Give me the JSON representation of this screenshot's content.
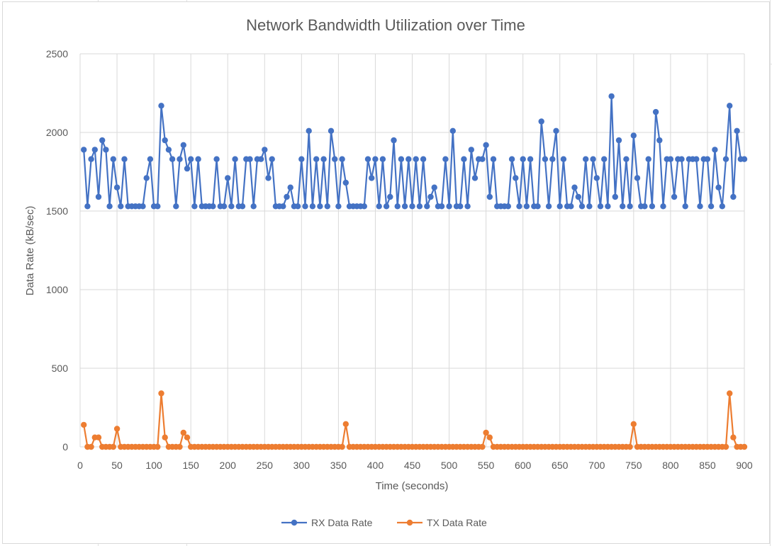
{
  "chart_data": {
    "type": "line",
    "title": "Network Bandwidth Utilization over Time",
    "xlabel": "Time (seconds)",
    "ylabel": "Data Rate (kB/sec)",
    "xlim": [
      0,
      900
    ],
    "ylim": [
      0,
      2500
    ],
    "x_ticks": [
      0,
      50,
      100,
      150,
      200,
      250,
      300,
      350,
      400,
      450,
      500,
      550,
      600,
      650,
      700,
      750,
      800,
      850,
      900
    ],
    "y_ticks": [
      0,
      500,
      1000,
      1500,
      2000,
      2500
    ],
    "grid": true,
    "legend_position": "bottom",
    "x": [
      5,
      10,
      15,
      20,
      25,
      30,
      35,
      40,
      45,
      50,
      55,
      60,
      65,
      70,
      75,
      80,
      85,
      90,
      95,
      100,
      105,
      110,
      115,
      120,
      125,
      130,
      135,
      140,
      145,
      150,
      155,
      160,
      165,
      170,
      175,
      180,
      185,
      190,
      195,
      200,
      205,
      210,
      215,
      220,
      225,
      230,
      235,
      240,
      245,
      250,
      255,
      260,
      265,
      270,
      275,
      280,
      285,
      290,
      295,
      300,
      305,
      310,
      315,
      320,
      325,
      330,
      335,
      340,
      345,
      350,
      355,
      360,
      365,
      370,
      375,
      380,
      385,
      390,
      395,
      400,
      405,
      410,
      415,
      420,
      425,
      430,
      435,
      440,
      445,
      450,
      455,
      460,
      465,
      470,
      475,
      480,
      485,
      490,
      495,
      500,
      505,
      510,
      515,
      520,
      525,
      530,
      535,
      540,
      545,
      550,
      555,
      560,
      565,
      570,
      575,
      580,
      585,
      590,
      595,
      600,
      605,
      610,
      615,
      620,
      625,
      630,
      635,
      640,
      645,
      650,
      655,
      660,
      665,
      670,
      675,
      680,
      685,
      690,
      695,
      700,
      705,
      710,
      715,
      720,
      725,
      730,
      735,
      740,
      745,
      750,
      755,
      760,
      765,
      770,
      775,
      780,
      785,
      790,
      795,
      800,
      805,
      810,
      815,
      820,
      825,
      830,
      835,
      840,
      845,
      850,
      855,
      860,
      865,
      870,
      875,
      880,
      885,
      890,
      895,
      900
    ],
    "series": [
      {
        "name": "RX Data Rate",
        "color": "#4472c4",
        "values": [
          1890,
          1530,
          1830,
          1890,
          1590,
          1950,
          1890,
          1530,
          1830,
          1650,
          1530,
          1830,
          1530,
          1530,
          1530,
          1530,
          1530,
          1710,
          1830,
          1530,
          1530,
          2170,
          1950,
          1890,
          1830,
          1530,
          1830,
          1920,
          1770,
          1830,
          1530,
          1830,
          1530,
          1530,
          1530,
          1530,
          1830,
          1530,
          1530,
          1710,
          1530,
          1830,
          1530,
          1530,
          1830,
          1830,
          1530,
          1830,
          1830,
          1890,
          1710,
          1830,
          1530,
          1530,
          1530,
          1590,
          1650,
          1530,
          1530,
          1830,
          1530,
          2010,
          1530,
          1830,
          1530,
          1830,
          1530,
          2010,
          1830,
          1530,
          1830,
          1680,
          1530,
          1530,
          1530,
          1530,
          1530,
          1830,
          1710,
          1830,
          1530,
          1830,
          1530,
          1590,
          1950,
          1530,
          1830,
          1530,
          1830,
          1530,
          1830,
          1530,
          1830,
          1530,
          1590,
          1650,
          1530,
          1530,
          1830,
          1530,
          2010,
          1530,
          1530,
          1830,
          1530,
          1890,
          1710,
          1830,
          1830,
          1920,
          1590,
          1830,
          1530,
          1530,
          1530,
          1530,
          1830,
          1710,
          1530,
          1830,
          1530,
          1830,
          1530,
          1530,
          2070,
          1830,
          1530,
          1830,
          2010,
          1530,
          1830,
          1530,
          1530,
          1650,
          1590,
          1530,
          1830,
          1530,
          1830,
          1710,
          1530,
          1830,
          1530,
          2230,
          1590,
          1950,
          1530,
          1830,
          1530,
          1980,
          1710,
          1530,
          1530,
          1830,
          1530,
          2130,
          1950,
          1530,
          1830,
          1830,
          1590,
          1830,
          1830,
          1530,
          1830,
          1830,
          1830,
          1530,
          1830,
          1830,
          1530,
          1890,
          1650,
          1530,
          1830,
          2170,
          1590,
          2010,
          1830,
          1830
        ]
      },
      {
        "name": "TX Data Rate",
        "color": "#ed7d31",
        "values": [
          140,
          0,
          0,
          60,
          60,
          0,
          0,
          0,
          0,
          115,
          0,
          0,
          0,
          0,
          0,
          0,
          0,
          0,
          0,
          0,
          0,
          340,
          60,
          0,
          0,
          0,
          0,
          90,
          60,
          0,
          0,
          0,
          0,
          0,
          0,
          0,
          0,
          0,
          0,
          0,
          0,
          0,
          0,
          0,
          0,
          0,
          0,
          0,
          0,
          0,
          0,
          0,
          0,
          0,
          0,
          0,
          0,
          0,
          0,
          0,
          0,
          0,
          0,
          0,
          0,
          0,
          0,
          0,
          0,
          0,
          0,
          145,
          0,
          0,
          0,
          0,
          0,
          0,
          0,
          0,
          0,
          0,
          0,
          0,
          0,
          0,
          0,
          0,
          0,
          0,
          0,
          0,
          0,
          0,
          0,
          0,
          0,
          0,
          0,
          0,
          0,
          0,
          0,
          0,
          0,
          0,
          0,
          0,
          0,
          90,
          60,
          0,
          0,
          0,
          0,
          0,
          0,
          0,
          0,
          0,
          0,
          0,
          0,
          0,
          0,
          0,
          0,
          0,
          0,
          0,
          0,
          0,
          0,
          0,
          0,
          0,
          0,
          0,
          0,
          0,
          0,
          0,
          0,
          0,
          0,
          0,
          0,
          0,
          0,
          145,
          0,
          0,
          0,
          0,
          0,
          0,
          0,
          0,
          0,
          0,
          0,
          0,
          0,
          0,
          0,
          0,
          0,
          0,
          0,
          0,
          0,
          0,
          0,
          0,
          0,
          340,
          60,
          0,
          0,
          0
        ]
      }
    ]
  }
}
